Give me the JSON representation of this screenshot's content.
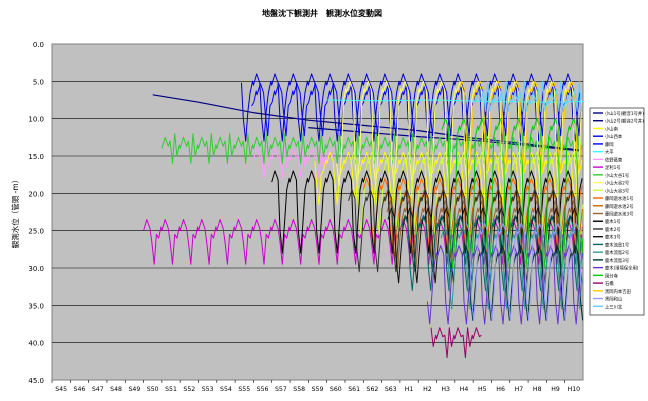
{
  "chart_data": {
    "type": "line",
    "title": "地盤沈下観測井　観測水位変動図",
    "ylabel": "観測水位（管頭 -m）",
    "xlabel": "",
    "ylim": [
      0,
      45
    ],
    "y_inverted": true,
    "y_ticks": [
      "0.0",
      "5.0",
      "10.0",
      "15.0",
      "20.0",
      "25.0",
      "30.0",
      "35.0",
      "40.0",
      "45.0"
    ],
    "y_tick_values": [
      0,
      5,
      10,
      15,
      20,
      25,
      30,
      35,
      40,
      45
    ],
    "categories": [
      "S45",
      "S46",
      "S47",
      "S48",
      "S49",
      "S50",
      "S51",
      "S52",
      "S53",
      "S54",
      "S55",
      "S56",
      "S57",
      "S58",
      "S59",
      "S60",
      "S61",
      "S62",
      "S63",
      "H1",
      "H2",
      "H3",
      "H4",
      "H5",
      "H6",
      "H7",
      "H8",
      "H9",
      "H10"
    ],
    "x_domain": [
      0,
      29
    ],
    "grid": true,
    "plot_background": "#c0c0c0",
    "legend_position": "right",
    "series": [
      {
        "name": "小山1号(観音1号井)",
        "color": "#000080",
        "kind": "trend",
        "x": [
          5.5,
          8,
          11,
          14,
          17,
          20,
          23,
          26,
          28.8
        ],
        "y": [
          6.8,
          7.8,
          9.2,
          10.2,
          10.9,
          11.6,
          12.6,
          13.4,
          14.2
        ]
      },
      {
        "name": "小山2号(観音2号井)",
        "color": "#000080",
        "kind": "trend",
        "x": [
          14,
          17,
          20,
          23,
          26,
          28.8
        ],
        "y": [
          11.2,
          11.8,
          12.4,
          12.9,
          13.6,
          14.3
        ]
      },
      {
        "name": "小山南",
        "color": "#ffff00",
        "kind": "seasonal",
        "x0": 14.2,
        "x1": 29,
        "shallow": 14.5,
        "deep": 21.5,
        "dx": 0,
        "dy": 0
      },
      {
        "name": "小山西本",
        "color": "#0000cc",
        "kind": "seasonal",
        "x0": 10.3,
        "x1": 28.9,
        "shallow": 4.0,
        "deep": 13.0,
        "dx": 0,
        "dy": 0
      },
      {
        "name": "藤岡",
        "color": "#0000ff",
        "kind": "seasonal",
        "x0": 10.8,
        "x1": 28.9,
        "shallow": 5.0,
        "deep": 12.0,
        "dx": 0.2,
        "dy": 0.3
      },
      {
        "name": "大平",
        "color": "#33ffff",
        "kind": "flat",
        "x": [
          15,
          18,
          21,
          24,
          27,
          29
        ],
        "y": [
          7.5,
          7.6,
          7.5,
          7.7,
          7.8,
          7.7
        ]
      },
      {
        "name": "佐野葛東",
        "color": "#ff99ff",
        "kind": "seasonal",
        "x0": 11.0,
        "x1": 15.5,
        "shallow": 14.0,
        "deep": 18.0,
        "dx": 0,
        "dy": 0
      },
      {
        "name": "足利1号",
        "color": "#cc00cc",
        "kind": "seasonal",
        "x0": 5.0,
        "x1": 29,
        "shallow": 23.5,
        "deep": 29.5,
        "dx": 0,
        "dy": 0
      },
      {
        "name": "小山大谷1号",
        "color": "#33cc33",
        "kind": "seasonal",
        "x0": 6.0,
        "x1": 29,
        "shallow": 12.5,
        "deep": 16.0,
        "dx": 0,
        "dy": 0
      },
      {
        "name": "小山大谷2号",
        "color": "#ffff66",
        "kind": "seasonal",
        "x0": 15.5,
        "x1": 29,
        "shallow": 5.0,
        "deep": 19.0,
        "dx": 0.1,
        "dy": 0
      },
      {
        "name": "小山大谷3号",
        "color": "#ccff33",
        "kind": "seasonal",
        "x0": 16.0,
        "x1": 29,
        "shallow": 14.0,
        "deep": 25.0,
        "dx": 0.3,
        "dy": 0.5
      },
      {
        "name": "藤岡遊水池1号",
        "color": "#ff6600",
        "kind": "seasonal",
        "x0": 17.0,
        "x1": 29,
        "shallow": 18.0,
        "deep": 27.0,
        "dx": 0,
        "dy": 0
      },
      {
        "name": "藤岡遊水池2号",
        "color": "#cc6600",
        "kind": "seasonal",
        "x0": 18.0,
        "x1": 29,
        "shallow": 19.0,
        "deep": 28.0,
        "dx": 0.15,
        "dy": 0.6
      },
      {
        "name": "藤岡遊水池3号",
        "color": "#996633",
        "kind": "seasonal",
        "x0": 18.0,
        "x1": 29,
        "shallow": 20.0,
        "deep": 29.0,
        "dx": 0.3,
        "dy": 1.0
      },
      {
        "name": "鹿木1号",
        "color": "#000000",
        "kind": "seasonal",
        "x0": 12.0,
        "x1": 29,
        "shallow": 17.0,
        "deep": 28.0,
        "dx": 0,
        "dy": 0
      },
      {
        "name": "鹿木2号",
        "color": "#333333",
        "kind": "seasonal",
        "x0": 16.0,
        "x1": 29,
        "shallow": 19.0,
        "deep": 30.0,
        "dx": 0.2,
        "dy": 0.5
      },
      {
        "name": "鹿木3号",
        "color": "#111111",
        "kind": "seasonal",
        "x0": 18.0,
        "x1": 29,
        "shallow": 21.0,
        "deep": 31.0,
        "dx": 0.35,
        "dy": 1.0
      },
      {
        "name": "鹿木流島1号",
        "color": "#006666",
        "kind": "seasonal",
        "x0": 19.0,
        "x1": 29,
        "shallow": 23.0,
        "deep": 33.0,
        "dx": 0.1,
        "dy": 0
      },
      {
        "name": "鹿木流島2号",
        "color": "#339999",
        "kind": "seasonal",
        "x0": 21.0,
        "x1": 29,
        "shallow": 24.0,
        "deep": 35.0,
        "dx": 0.25,
        "dy": 0.5
      },
      {
        "name": "鹿木流島3号",
        "color": "#003333",
        "kind": "seasonal",
        "x0": 22.0,
        "x1": 29,
        "shallow": 26.0,
        "deep": 36.0,
        "dx": 0.4,
        "dy": 1.0
      },
      {
        "name": "鹿木(環境保全用)",
        "color": "#6633cc",
        "kind": "seasonal",
        "x0": 20.5,
        "x1": 29,
        "shallow": 27.0,
        "deep": 37.5,
        "dx": 0.05,
        "dy": 0
      },
      {
        "name": "国分寺",
        "color": "#00cc00",
        "kind": "seasonal",
        "x0": 21.0,
        "x1": 29,
        "shallow": 10.0,
        "deep": 30.0,
        "dx": 0.3,
        "dy": 0
      },
      {
        "name": "石橋",
        "color": "#990066",
        "kind": "seasonal",
        "x0": 20.6,
        "x1": 23.5,
        "shallow": 38.0,
        "deep": 42.0,
        "dx": 0,
        "dy": 0
      },
      {
        "name": "黒岡内本吉田",
        "color": "#ffcc00",
        "kind": "seasonal",
        "x0": 22.0,
        "x1": 29,
        "shallow": 5.0,
        "deep": 17.0,
        "dx": 0.2,
        "dy": 0
      },
      {
        "name": "黒岡和山",
        "color": "#9999ff",
        "kind": "seasonal",
        "x0": 22.5,
        "x1": 29,
        "shallow": 24.0,
        "deep": 37.0,
        "dx": 0.45,
        "dy": 0
      },
      {
        "name": "上三川北",
        "color": "#66ccff",
        "kind": "seasonal",
        "x0": 23.0,
        "x1": 29,
        "shallow": 6.5,
        "deep": 9.0,
        "dx": 0.1,
        "dy": 0
      }
    ]
  }
}
